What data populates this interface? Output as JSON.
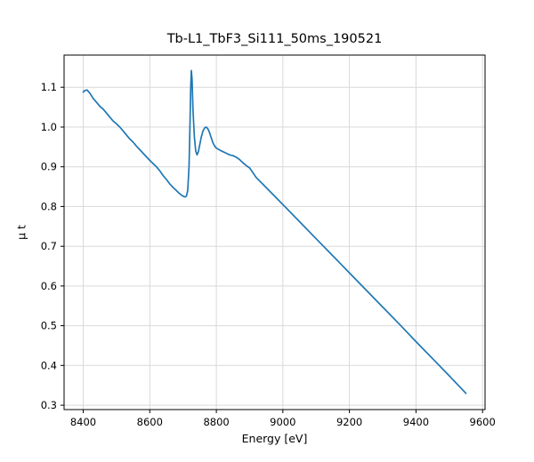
{
  "chart_data": {
    "type": "line",
    "title": "Tb-L1_TbF3_Si111_50ms_190521",
    "xlabel": "Energy [eV]",
    "ylabel": "μ t",
    "xlim": [
      8342.5,
      9607.5
    ],
    "ylim": [
      0.289,
      1.181
    ],
    "xticks": [
      8400,
      8600,
      8800,
      9000,
      9200,
      9400,
      9600
    ],
    "yticks": [
      0.3,
      0.4,
      0.5,
      0.6,
      0.7,
      0.8,
      0.9,
      1.0,
      1.1
    ],
    "grid": true,
    "legend": "none",
    "colors": {
      "line": "#1f77b4",
      "grid": "#d9d9d9",
      "spine": "#000000",
      "text": "#000000"
    },
    "series": [
      {
        "name": "mu_t",
        "x": [
          8400,
          8405,
          8412,
          8420,
          8430,
          8440,
          8450,
          8460,
          8470,
          8480,
          8490,
          8500,
          8510,
          8520,
          8530,
          8540,
          8550,
          8560,
          8570,
          8580,
          8590,
          8600,
          8610,
          8620,
          8630,
          8640,
          8650,
          8660,
          8670,
          8680,
          8690,
          8700,
          8706,
          8710,
          8714,
          8718,
          8721,
          8723,
          8725,
          8727,
          8730,
          8734,
          8738,
          8742,
          8746,
          8750,
          8755,
          8760,
          8765,
          8770,
          8775,
          8780,
          8785,
          8790,
          8795,
          8800,
          8810,
          8820,
          8830,
          8840,
          8850,
          8860,
          8870,
          8880,
          8890,
          8900,
          8920,
          8940,
          8960,
          8980,
          9000,
          9050,
          9100,
          9150,
          9200,
          9250,
          9300,
          9350,
          9400,
          9450,
          9500,
          9550
        ],
        "y": [
          1.088,
          1.092,
          1.093,
          1.085,
          1.072,
          1.062,
          1.052,
          1.045,
          1.035,
          1.025,
          1.015,
          1.008,
          1.0,
          0.99,
          0.98,
          0.97,
          0.962,
          0.952,
          0.943,
          0.934,
          0.925,
          0.916,
          0.908,
          0.9,
          0.89,
          0.878,
          0.868,
          0.857,
          0.848,
          0.84,
          0.832,
          0.826,
          0.824,
          0.826,
          0.84,
          0.9,
          1.01,
          1.1,
          1.142,
          1.12,
          1.04,
          0.975,
          0.94,
          0.93,
          0.938,
          0.955,
          0.975,
          0.99,
          0.998,
          1.0,
          0.995,
          0.985,
          0.972,
          0.96,
          0.952,
          0.947,
          0.942,
          0.938,
          0.934,
          0.93,
          0.928,
          0.924,
          0.918,
          0.91,
          0.903,
          0.897,
          0.873,
          0.856,
          0.839,
          0.822,
          0.805,
          0.762,
          0.719,
          0.676,
          0.633,
          0.59,
          0.547,
          0.504,
          0.46,
          0.417,
          0.374,
          0.33
        ]
      }
    ]
  }
}
